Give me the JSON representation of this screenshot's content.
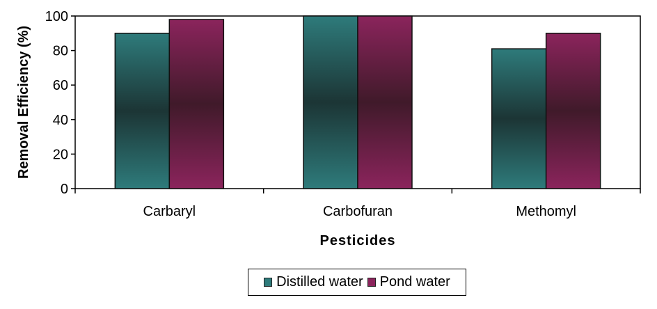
{
  "chart_data": {
    "type": "bar",
    "title": "",
    "xlabel": "Pesticides",
    "ylabel": "Removal Efficiency (%)",
    "categories": [
      "Carbaryl",
      "Carbofuran",
      "Methomyl"
    ],
    "series": [
      {
        "name": "Distilled water",
        "values": [
          90,
          100,
          81
        ],
        "color": "#2e7b7b",
        "dark": "#1c3535"
      },
      {
        "name": "Pond water",
        "values": [
          98,
          100,
          90
        ],
        "color": "#8b245c",
        "dark": "#401a2a"
      }
    ],
    "ylim": [
      0,
      100
    ],
    "yticks": [
      0,
      20,
      40,
      60,
      80,
      100
    ],
    "grid": false,
    "legend_position": "bottom"
  },
  "legend": {
    "items": [
      {
        "label": "Distilled water",
        "color": "#2e7b7b"
      },
      {
        "label": "Pond water",
        "color": "#8b245c"
      }
    ]
  }
}
